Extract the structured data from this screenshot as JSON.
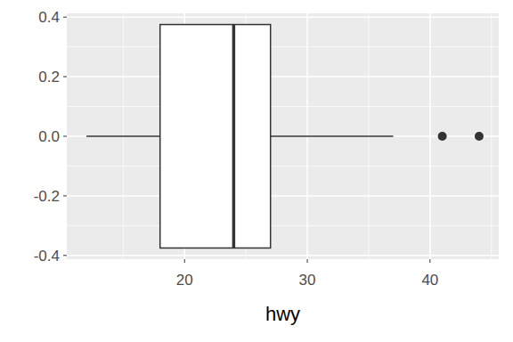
{
  "chart_data": {
    "type": "box",
    "orientation": "horizontal",
    "x_label": "hwy",
    "boxes": [
      {
        "min": 12,
        "q1": 18,
        "median": 24,
        "q3": 27,
        "max": 37,
        "outliers": [
          41,
          44
        ]
      }
    ],
    "xlim": [
      10.4,
      45.6
    ],
    "xticks": [
      20,
      30,
      40
    ],
    "ylim": [
      -0.4125,
      0.4125
    ],
    "yticks": [
      -0.4,
      -0.2,
      {
        "value": 0,
        "label": "0.0"
      },
      0.2,
      0.4
    ],
    "grid": true
  }
}
